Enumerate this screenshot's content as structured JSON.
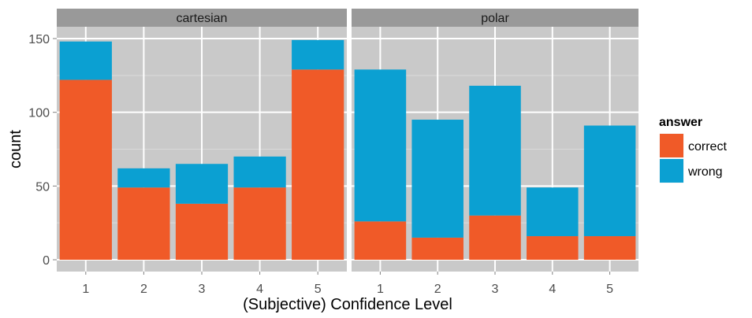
{
  "chart_data": {
    "type": "bar",
    "stacked": true,
    "facet_by": "",
    "facets": [
      {
        "label": "cartesian",
        "categories": [
          "1",
          "2",
          "3",
          "4",
          "5"
        ],
        "series": [
          {
            "name": "correct",
            "values": [
              122,
              49,
              38,
              49,
              129
            ]
          },
          {
            "name": "wrong",
            "values": [
              26,
              13,
              27,
              21,
              20
            ]
          }
        ]
      },
      {
        "label": "polar",
        "categories": [
          "1",
          "2",
          "3",
          "4",
          "5"
        ],
        "series": [
          {
            "name": "correct",
            "values": [
              26,
              15,
              30,
              16,
              16
            ]
          },
          {
            "name": "wrong",
            "values": [
              103,
              80,
              88,
              33,
              75
            ]
          }
        ]
      }
    ],
    "xlabel": "(Subjective) Confidence Level",
    "ylabel": "count",
    "ylim": [
      -8,
      158
    ],
    "yticks": [
      0,
      50,
      100,
      150
    ],
    "grid": true,
    "legend": {
      "title": "answer",
      "placement": "right",
      "entries": [
        {
          "label": "correct",
          "color": "#f05a28"
        },
        {
          "label": "wrong",
          "color": "#0ba0d2"
        }
      ]
    },
    "colors": {
      "correct": "#f05a28",
      "wrong": "#0ba0d2",
      "panel_background": "#c9c9c9",
      "strip_background": "#999999",
      "grid_major": "#ffffff",
      "grid_minor": "#dadada"
    }
  }
}
